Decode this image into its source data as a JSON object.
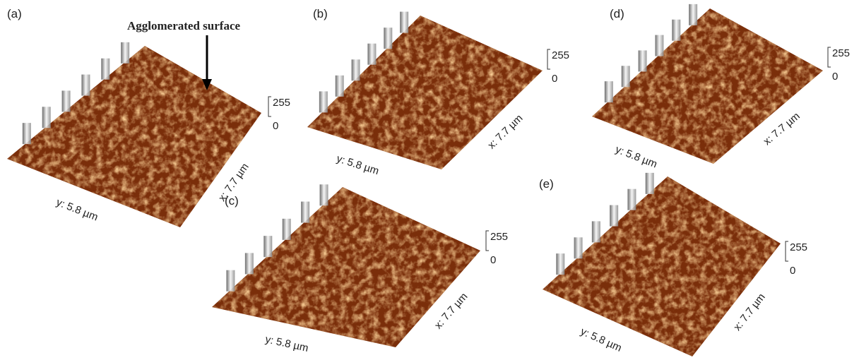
{
  "annotation": "Agglomerated surface",
  "panels": [
    {
      "label": "(a)",
      "z_max": "255",
      "z_min": "0",
      "y_axis": "y: 5.8 µm",
      "x_axis": "x: 7.7 µm"
    },
    {
      "label": "(b)",
      "z_max": "255",
      "z_min": "0",
      "y_axis": "y: 5.8 µm",
      "x_axis": "x: 7.7 µm"
    },
    {
      "label": "(c)",
      "z_max": "255",
      "z_min": "0",
      "y_axis": "y: 5.8 µm",
      "x_axis": "x: 7.7 µm"
    },
    {
      "label": "(d)",
      "z_max": "255",
      "z_min": "0",
      "y_axis": "y: 5.8 µm",
      "x_axis": "x: 7.7 µm"
    },
    {
      "label": "(e)",
      "z_max": "255",
      "z_min": "0",
      "y_axis": "y: 5.8 µm",
      "x_axis": "x: 7.7 µm"
    }
  ]
}
